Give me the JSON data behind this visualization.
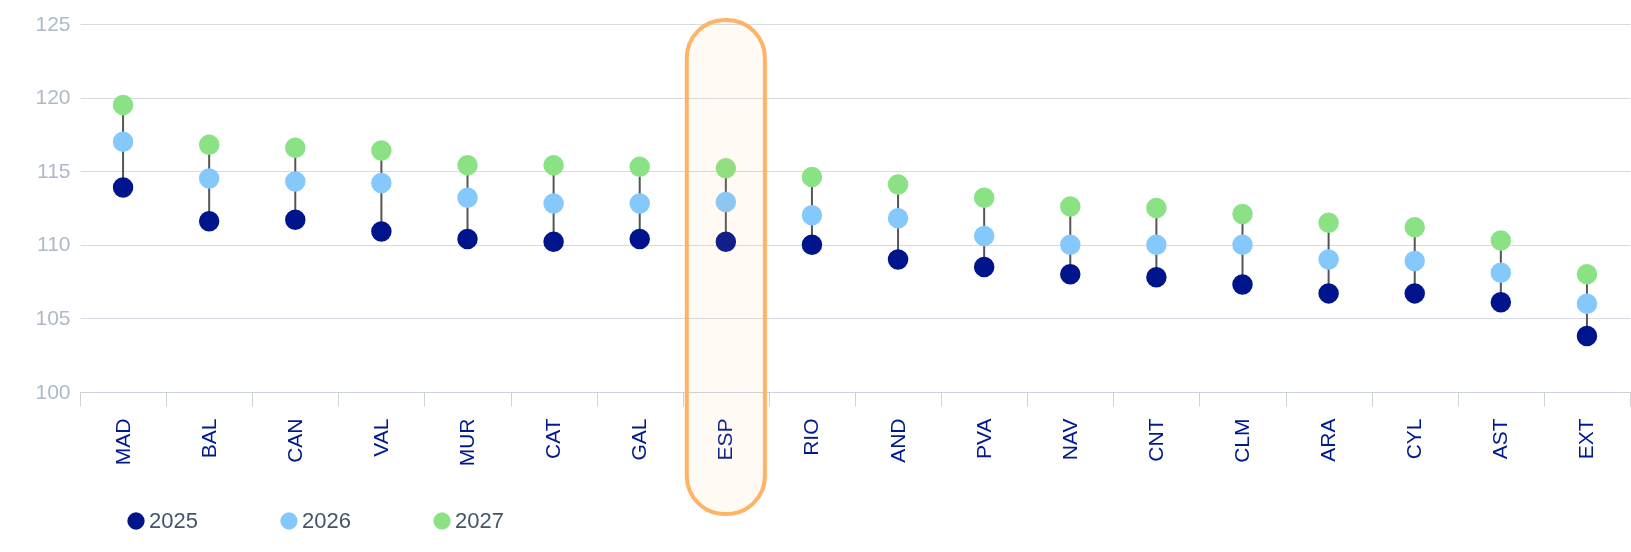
{
  "chart_data": {
    "type": "scatter",
    "categories": [
      "MAD",
      "BAL",
      "CAN",
      "VAL",
      "MUR",
      "CAT",
      "GAL",
      "ESP",
      "RIO",
      "AND",
      "PVA",
      "NAV",
      "CNT",
      "CLM",
      "ARA",
      "CYL",
      "AST",
      "EXT"
    ],
    "series": [
      {
        "name": "2025",
        "color": "#00148c",
        "values": [
          113.9,
          111.6,
          111.7,
          110.9,
          110.4,
          110.2,
          110.4,
          110.2,
          110.0,
          109.0,
          108.5,
          108.0,
          107.8,
          107.3,
          106.7,
          106.7,
          106.1,
          103.8
        ]
      },
      {
        "name": "2026",
        "color": "#85c8fc",
        "values": [
          117.0,
          114.5,
          114.3,
          114.2,
          113.2,
          112.8,
          112.8,
          112.9,
          112.0,
          111.8,
          110.6,
          110.0,
          110.0,
          110.0,
          109.0,
          108.9,
          108.1,
          106.0
        ]
      },
      {
        "name": "2027",
        "color": "#8ae284",
        "values": [
          119.5,
          116.8,
          116.6,
          116.4,
          115.4,
          115.4,
          115.3,
          115.2,
          114.6,
          114.1,
          113.2,
          112.6,
          112.5,
          112.1,
          111.5,
          111.2,
          110.3,
          108.0
        ]
      }
    ],
    "ylim": [
      100,
      125
    ],
    "yticks": [
      100,
      105,
      110,
      115,
      120,
      125
    ],
    "grid": "y",
    "legend": "bottom",
    "marker": "circle",
    "bands": [
      {
        "axis": "x",
        "from": "ESP",
        "to": "ESP",
        "color": "#ffb366"
      }
    ]
  }
}
